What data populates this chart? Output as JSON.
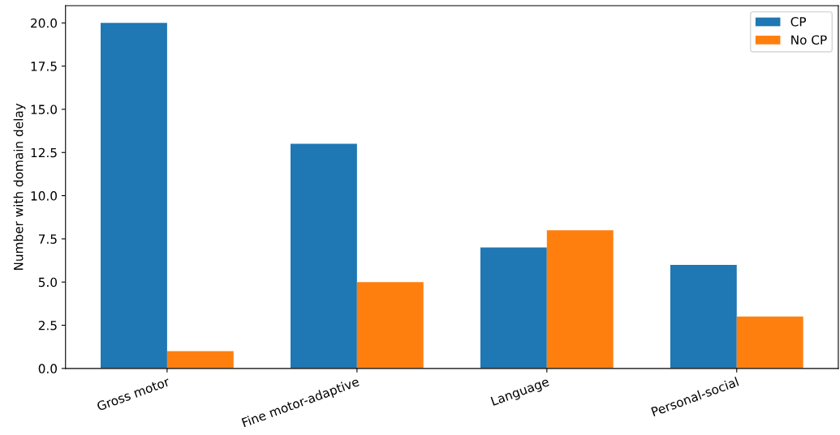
{
  "chart_data": {
    "type": "bar",
    "ylabel": "Number with domain delay",
    "categories": [
      "Gross motor",
      "Fine motor-adaptive",
      "Language",
      "Personal-social"
    ],
    "series": [
      {
        "name": "CP",
        "color": "#1f77b4",
        "values": [
          20,
          13,
          7,
          6
        ]
      },
      {
        "name": "No CP",
        "color": "#ff7f0e",
        "values": [
          1,
          5,
          8,
          3
        ]
      }
    ],
    "ylim": [
      0,
      21
    ],
    "yticks": [
      {
        "value": 0,
        "label": "0.0"
      },
      {
        "value": 2.5,
        "label": "2.5"
      },
      {
        "value": 5,
        "label": "5.0"
      },
      {
        "value": 7.5,
        "label": "7.5"
      },
      {
        "value": 10,
        "label": "10.0"
      },
      {
        "value": 12.5,
        "label": "12.5"
      },
      {
        "value": 15,
        "label": "15.0"
      },
      {
        "value": 17.5,
        "label": "17.5"
      },
      {
        "value": 20,
        "label": "20.0"
      }
    ],
    "grid": false,
    "legend": "top right"
  }
}
